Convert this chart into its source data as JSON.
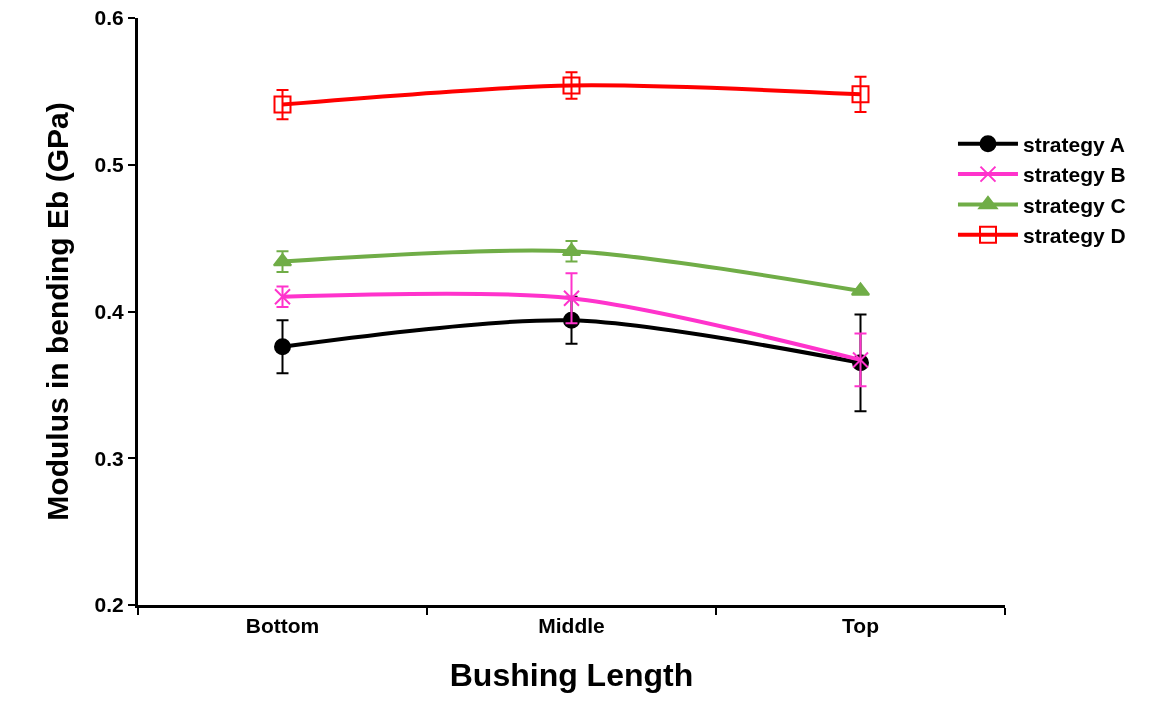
{
  "chart_data": {
    "type": "line",
    "xlabel": "Bushing Length",
    "ylabel": "Modulus in bending Eb (GPa)",
    "categories": [
      "Bottom",
      "Middle",
      "Top"
    ],
    "series": [
      {
        "name": "strategy A",
        "color": "#000000",
        "marker": "circle",
        "values": [
          0.376,
          0.394,
          0.365
        ],
        "errors": [
          0.018,
          0.016,
          0.033
        ]
      },
      {
        "name": "strategy B",
        "color": "#ff33cc",
        "marker": "cross",
        "values": [
          0.41,
          0.409,
          0.367
        ],
        "errors": [
          0.007,
          0.017,
          0.018
        ]
      },
      {
        "name": "strategy C",
        "color": "#70ad47",
        "marker": "triangle",
        "values": [
          0.434,
          0.441,
          0.414
        ],
        "errors": [
          0.007,
          0.007,
          null
        ]
      },
      {
        "name": "strategy D",
        "color": "#ff0000",
        "marker": "square",
        "values": [
          0.541,
          0.554,
          0.548
        ],
        "errors": [
          0.01,
          0.009,
          0.012
        ]
      }
    ],
    "ylim": [
      0.2,
      0.6
    ],
    "yticks": [
      0.2,
      0.3,
      0.4,
      0.5,
      0.6
    ],
    "grid": false,
    "legend": "right"
  }
}
